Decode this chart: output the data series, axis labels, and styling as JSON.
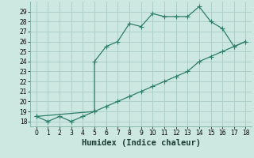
{
  "xlabel": "Humidex (Indice chaleur)",
  "line1_x": [
    0,
    1,
    2,
    3,
    4,
    5,
    5,
    6,
    7,
    8,
    9,
    10,
    11,
    12,
    13,
    14,
    15,
    16,
    17,
    18
  ],
  "line1_y": [
    18.5,
    18.0,
    18.5,
    18.0,
    18.5,
    19.0,
    24.0,
    25.5,
    26.0,
    27.8,
    27.5,
    28.8,
    28.5,
    28.5,
    28.5,
    29.5,
    28.0,
    27.3,
    25.5,
    26.0
  ],
  "line2_x": [
    0,
    5,
    6,
    7,
    8,
    9,
    10,
    11,
    12,
    13,
    14,
    15,
    16,
    17,
    18
  ],
  "line2_y": [
    18.5,
    19.0,
    19.5,
    20.0,
    20.5,
    21.0,
    21.5,
    22.0,
    22.5,
    23.0,
    24.0,
    24.5,
    25.0,
    25.5,
    26.0
  ],
  "line_color": "#2e7d6a",
  "bg_color": "#cce8e0",
  "grid_color": "#aaccc4",
  "xlim": [
    -0.5,
    18.5
  ],
  "ylim": [
    17.5,
    30.0
  ],
  "xticks": [
    0,
    1,
    2,
    3,
    4,
    5,
    6,
    7,
    8,
    9,
    10,
    11,
    12,
    13,
    14,
    15,
    16,
    17,
    18
  ],
  "yticks": [
    18,
    19,
    20,
    21,
    22,
    23,
    24,
    25,
    26,
    27,
    28,
    29
  ],
  "tick_fontsize": 5.5,
  "xlabel_fontsize": 7.5,
  "markersize": 2.0,
  "linewidth": 0.9
}
